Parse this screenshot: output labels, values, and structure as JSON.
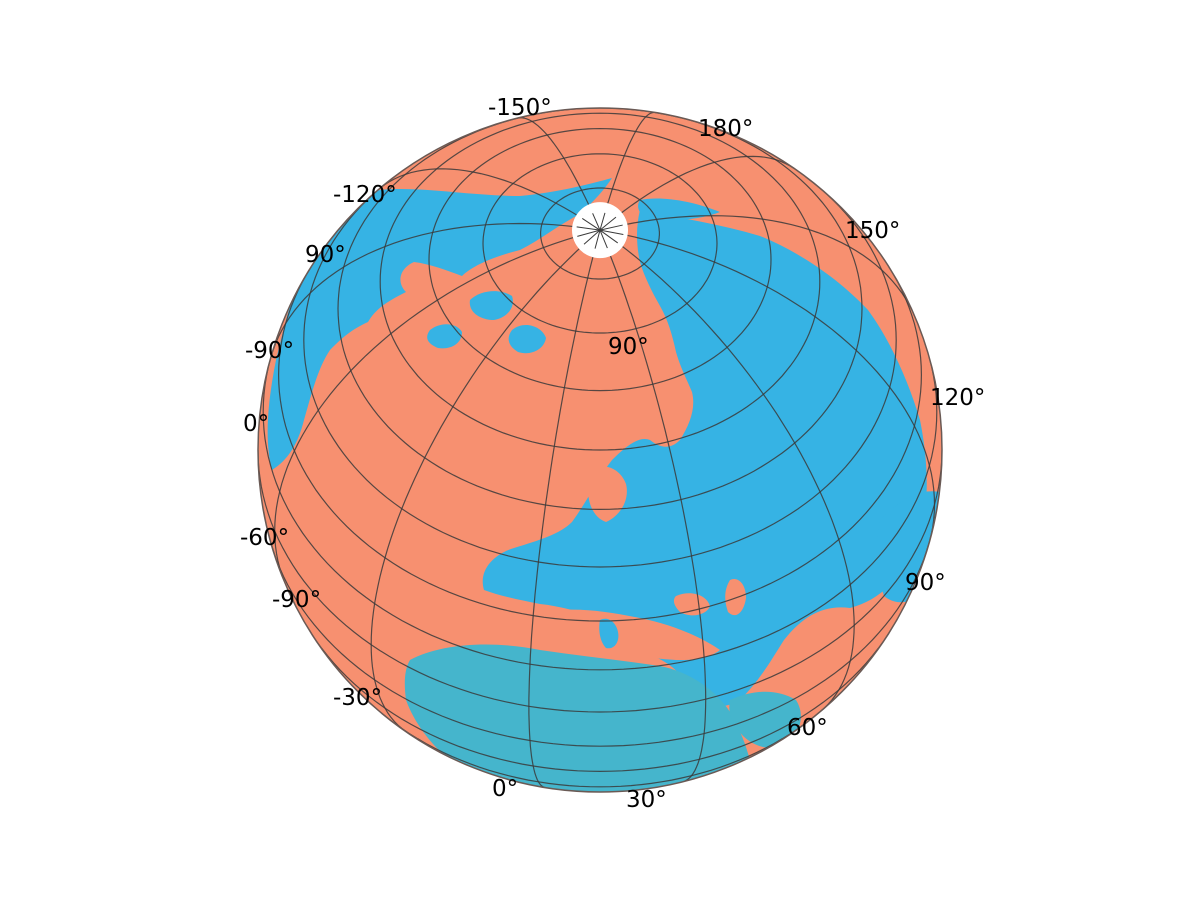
{
  "map": {
    "projection": "orthographic",
    "colors": {
      "ocean": "#f79070",
      "land": "#36b3e4",
      "land_south": "#45b5cc",
      "graticule": "#3a3a3a",
      "outline": "#6a5a55",
      "pole_patch": "#ffffff"
    },
    "graticule_interval_deg": 10,
    "labels": {
      "lon_m150": "-150°",
      "lon_180": "180°",
      "lon_m120": "-120°",
      "lon_150": "150°",
      "lon_m90": "-90°",
      "lon_90_left": "90°",
      "lon_120": "120°",
      "lon_0_left": "0°",
      "lon_m60": "-60°",
      "lon_m90_low": "-90°",
      "lon_90_right": "90°",
      "lon_m30": "-30°",
      "lon_60": "60°",
      "lon_0": "0°",
      "lon_30": "30°",
      "pole": "90°"
    }
  }
}
